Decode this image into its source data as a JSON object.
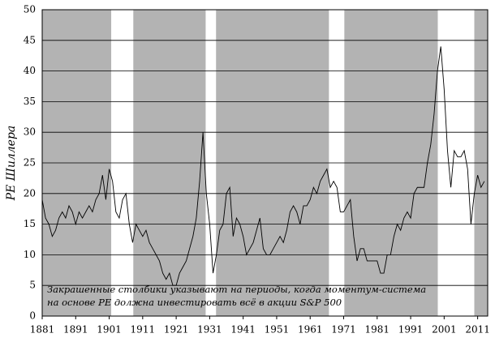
{
  "chart_data": {
    "type": "line",
    "y_label": "PE Шиллера",
    "annotation": [
      "Закрашенные столбики указывают на периоды, когда моментум-система",
      "на основе PE должна инвестировать всё в акции S&P 500"
    ],
    "x": [
      1881,
      1882,
      1883,
      1884,
      1885,
      1886,
      1887,
      1888,
      1889,
      1890,
      1891,
      1892,
      1893,
      1894,
      1895,
      1896,
      1897,
      1898,
      1899,
      1900,
      1901,
      1902,
      1903,
      1904,
      1905,
      1906,
      1907,
      1908,
      1909,
      1910,
      1911,
      1912,
      1913,
      1914,
      1915,
      1916,
      1917,
      1918,
      1919,
      1920,
      1921,
      1922,
      1923,
      1924,
      1925,
      1926,
      1927,
      1928,
      1929,
      1930,
      1931,
      1932,
      1933,
      1934,
      1935,
      1936,
      1937,
      1938,
      1939,
      1940,
      1941,
      1942,
      1943,
      1944,
      1945,
      1946,
      1947,
      1948,
      1949,
      1950,
      1951,
      1952,
      1953,
      1954,
      1955,
      1956,
      1957,
      1958,
      1959,
      1960,
      1961,
      1962,
      1963,
      1964,
      1965,
      1966,
      1967,
      1968,
      1969,
      1970,
      1971,
      1972,
      1973,
      1974,
      1975,
      1976,
      1977,
      1978,
      1979,
      1980,
      1981,
      1982,
      1983,
      1984,
      1985,
      1986,
      1987,
      1988,
      1989,
      1990,
      1991,
      1992,
      1993,
      1994,
      1995,
      1996,
      1997,
      1998,
      1999,
      2000,
      2001,
      2002,
      2003,
      2004,
      2005,
      2006,
      2007,
      2008,
      2009,
      2010,
      2011,
      2012,
      2013
    ],
    "values": [
      19,
      16,
      15,
      13,
      14,
      16,
      17,
      16,
      18,
      17,
      15,
      17,
      16,
      17,
      18,
      17,
      19,
      20,
      23,
      19,
      24,
      22,
      17,
      16,
      19,
      20,
      15,
      12,
      15,
      14,
      13,
      14,
      12,
      11,
      10,
      9,
      7,
      6,
      7,
      5,
      5,
      7,
      8,
      9,
      11,
      13,
      16,
      22,
      30,
      20,
      15,
      7,
      10,
      14,
      15,
      20,
      21,
      13,
      16,
      15,
      13,
      10,
      11,
      12,
      14,
      16,
      11,
      10,
      10,
      11,
      12,
      13,
      12,
      14,
      17,
      18,
      17,
      15,
      18,
      18,
      19,
      21,
      20,
      22,
      23,
      24,
      21,
      22,
      21,
      17,
      17,
      18,
      19,
      13,
      9,
      11,
      11,
      9,
      9,
      9,
      9,
      7,
      7,
      10,
      10,
      13,
      15,
      14,
      16,
      17,
      16,
      20,
      21,
      21,
      21,
      25,
      28,
      33,
      40,
      44,
      37,
      27,
      21,
      27,
      26,
      26,
      27,
      24,
      15,
      20,
      23,
      21,
      22
    ],
    "color": "#000000",
    "shaded_periods": [
      [
        1881,
        1901.6
      ],
      [
        1908.2,
        1929.8
      ],
      [
        1932.9,
        1966.6
      ],
      [
        1971.2,
        1999.1
      ],
      [
        2010,
        2014
      ]
    ],
    "shade_color": "#b3b3b3",
    "xlim": [
      1881,
      2014
    ],
    "xticks": [
      1881,
      1891,
      1901,
      1911,
      1921,
      1931,
      1941,
      1951,
      1961,
      1971,
      1981,
      1991,
      2001,
      2011
    ],
    "ylim": [
      0,
      50
    ],
    "yticks": [
      0,
      5,
      10,
      15,
      20,
      25,
      30,
      35,
      40,
      45,
      50
    ],
    "grid": true
  }
}
